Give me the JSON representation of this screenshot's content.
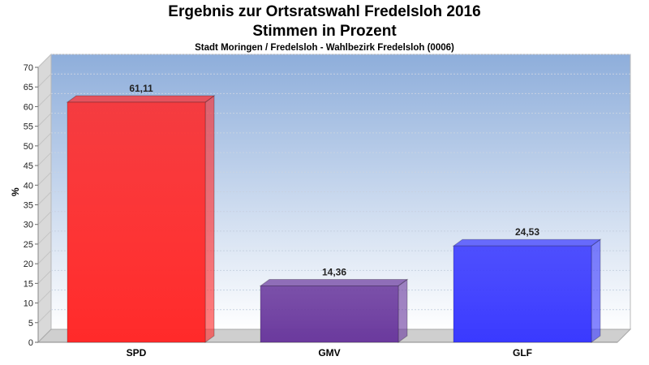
{
  "chart_data": {
    "type": "bar",
    "title": "Ergebnis zur Ortsratswahl Fredelsloh 2016",
    "title2": "Stimmen in Prozent",
    "subtitle": "Stadt Moringen / Fredelsloh - Wahlbezirk Fredelsloh (0006)",
    "ylabel": "%",
    "xlabel": "",
    "categories": [
      "SPD",
      "GMV",
      "GLF"
    ],
    "values": [
      61.11,
      14.36,
      24.53
    ],
    "value_labels": [
      "61,11",
      "14,36",
      "24,53"
    ],
    "colors": [
      "#ff2a2a",
      "#6b3a9e",
      "#3a3aff"
    ],
    "ylim": [
      0,
      70
    ],
    "yticks": [
      0,
      5,
      10,
      15,
      20,
      25,
      30,
      35,
      40,
      45,
      50,
      55,
      60,
      65,
      70
    ],
    "grid": true
  }
}
